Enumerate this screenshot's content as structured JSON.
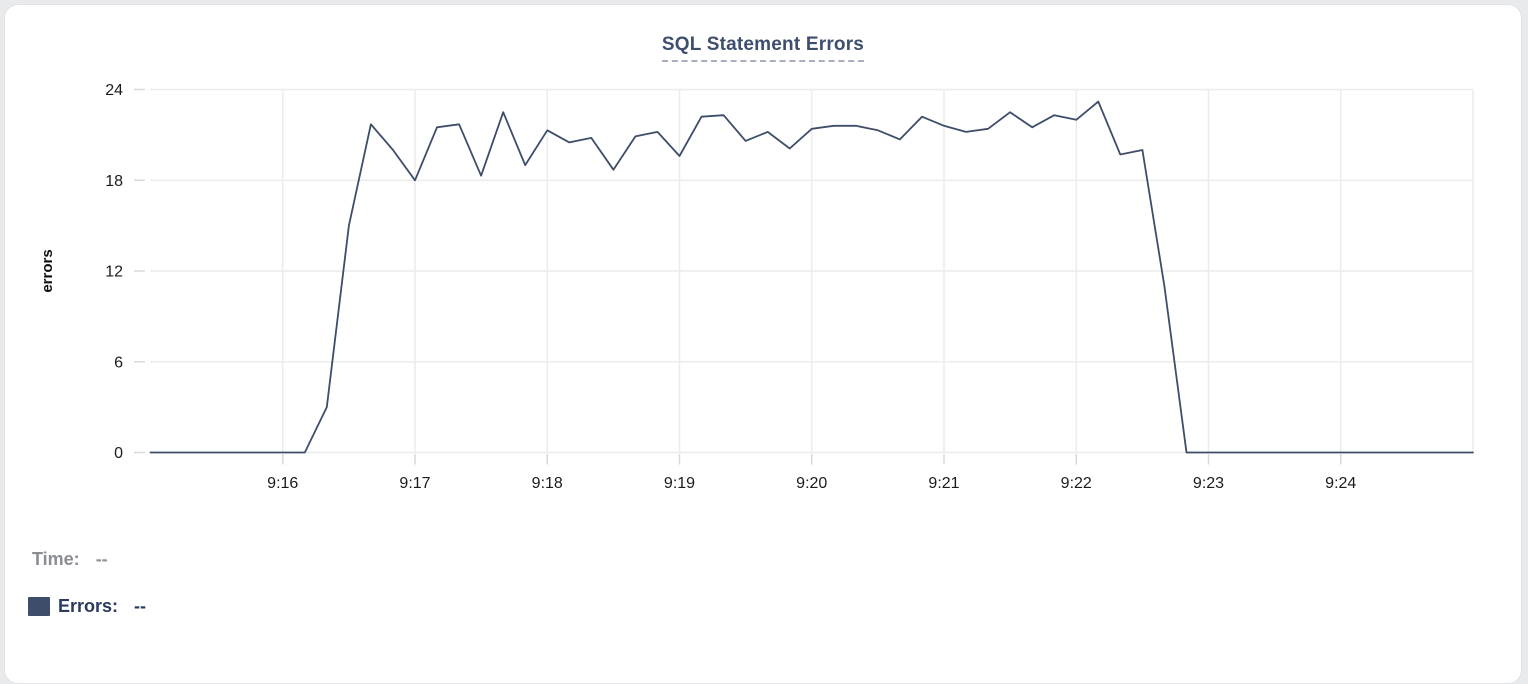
{
  "card": {
    "background": "#ffffff",
    "border_color": "#e0e2e6"
  },
  "chart_data": {
    "type": "line",
    "title": "SQL Statement Errors",
    "ylabel": "errors",
    "ylim": [
      0,
      24
    ],
    "y_ticks": [
      0,
      6,
      12,
      18,
      24
    ],
    "x_tick_labels": [
      "9:16",
      "9:17",
      "9:18",
      "9:19",
      "9:20",
      "9:21",
      "9:22",
      "9:23",
      "9:24"
    ],
    "x_start": "9:15:00",
    "x_end": "9:25:00",
    "interval_seconds": 10,
    "grid": true,
    "gridline_color": "#ececec",
    "tick_color": "#d9d9d9",
    "axis_label_color": "#1b1b1d",
    "series": [
      {
        "name": "Errors",
        "color": "#3e4d6a",
        "values": [
          0,
          0,
          0,
          0,
          0,
          0,
          0,
          0,
          3,
          15,
          21.7,
          20,
          18,
          21.5,
          21.7,
          18.3,
          22.5,
          19,
          21.3,
          20.5,
          20.8,
          18.7,
          20.9,
          21.2,
          19.6,
          22.2,
          22.3,
          20.6,
          21.2,
          20.1,
          21.4,
          21.6,
          21.6,
          21.3,
          20.7,
          22.2,
          21.6,
          21.2,
          21.4,
          22.5,
          21.5,
          22.3,
          22,
          23.2,
          19.7,
          20,
          11,
          0,
          0,
          0,
          0,
          0,
          0,
          0,
          0,
          0,
          0,
          0,
          0,
          0,
          0
        ]
      }
    ]
  },
  "tooltip": {
    "time_label": "Time:",
    "time_value": "--",
    "errors_label": "Errors:",
    "errors_value": "--"
  }
}
